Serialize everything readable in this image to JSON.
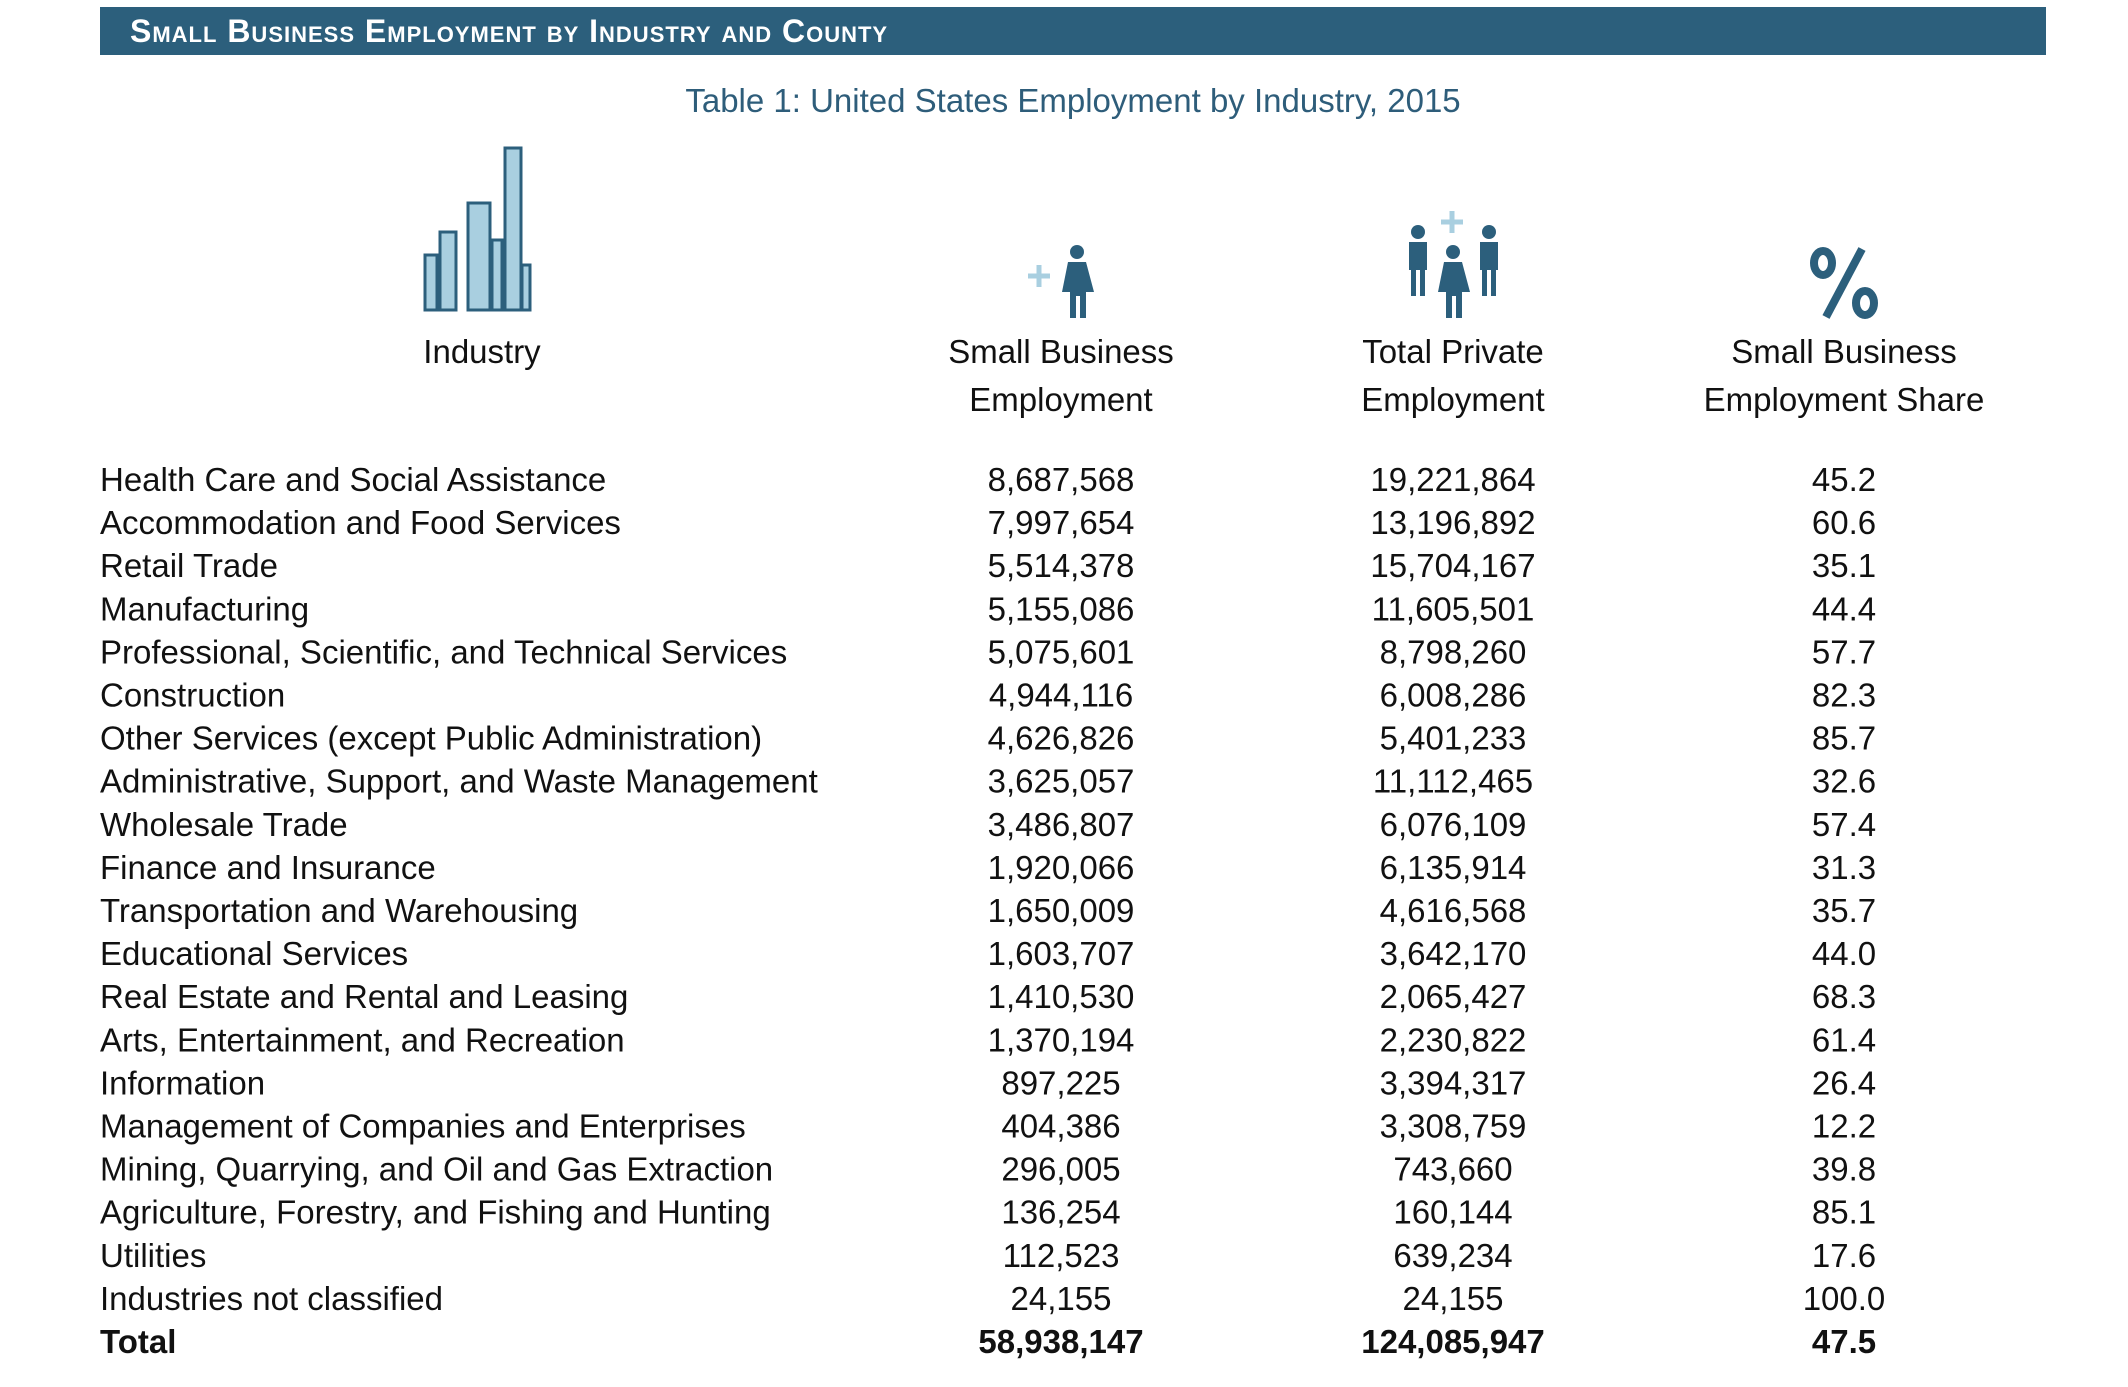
{
  "header": {
    "title": "Small Business Employment by Industry and County"
  },
  "table": {
    "caption": "Table 1: United States Employment by Industry, 2015",
    "columns": [
      [
        "Industry"
      ],
      [
        "Small Business",
        "Employment"
      ],
      [
        "Total Private",
        "Employment"
      ],
      [
        "Small Business",
        "Employment Share"
      ]
    ],
    "rows": [
      [
        "Health Care and Social Assistance",
        "8,687,568",
        "19,221,864",
        "45.2"
      ],
      [
        "Accommodation and Food Services",
        "7,997,654",
        "13,196,892",
        "60.6"
      ],
      [
        "Retail Trade",
        "5,514,378",
        "15,704,167",
        "35.1"
      ],
      [
        "Manufacturing",
        "5,155,086",
        "11,605,501",
        "44.4"
      ],
      [
        "Professional, Scientific, and Technical Services",
        "5,075,601",
        "8,798,260",
        "57.7"
      ],
      [
        "Construction",
        "4,944,116",
        "6,008,286",
        "82.3"
      ],
      [
        "Other Services (except Public Administration)",
        "4,626,826",
        "5,401,233",
        "85.7"
      ],
      [
        "Administrative, Support, and Waste Management",
        "3,625,057",
        "11,112,465",
        "32.6"
      ],
      [
        "Wholesale Trade",
        "3,486,807",
        "6,076,109",
        "57.4"
      ],
      [
        "Finance and Insurance",
        "1,920,066",
        "6,135,914",
        "31.3"
      ],
      [
        "Transportation and Warehousing",
        "1,650,009",
        "4,616,568",
        "35.7"
      ],
      [
        "Educational Services",
        "1,603,707",
        "3,642,170",
        "44.0"
      ],
      [
        "Real Estate and Rental and Leasing",
        "1,410,530",
        "2,065,427",
        "68.3"
      ],
      [
        "Arts, Entertainment, and Recreation",
        "1,370,194",
        "2,230,822",
        "61.4"
      ],
      [
        "Information",
        "897,225",
        "3,394,317",
        "26.4"
      ],
      [
        "Management of Companies and Enterprises",
        "404,386",
        "3,308,759",
        "12.2"
      ],
      [
        "Mining, Quarrying, and Oil and Gas Extraction",
        "296,005",
        "743,660",
        "39.8"
      ],
      [
        "Agriculture, Forestry, and Fishing and Hunting",
        "136,254",
        "160,144",
        "85.1"
      ],
      [
        "Utilities",
        "112,523",
        "639,234",
        "17.6"
      ],
      [
        "Industries not classified",
        "24,155",
        "24,155",
        "100.0"
      ]
    ],
    "total": [
      "Total",
      "58,938,147",
      "124,085,947",
      "47.5"
    ]
  }
}
